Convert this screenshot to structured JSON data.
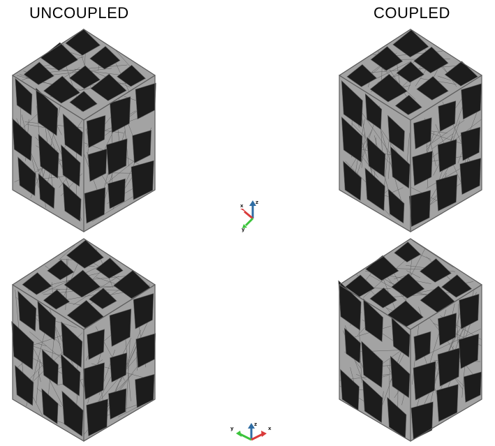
{
  "headings": {
    "left": "UNCOUPLED",
    "right": "COUPLED"
  },
  "axis_triad_top": {
    "labels": [
      "x",
      "z",
      "y"
    ]
  },
  "axis_triad_bottom": {
    "labels": [
      "y",
      "z",
      "x"
    ]
  },
  "colors": {
    "face": "#a3a3a3",
    "mesh_line": "#5e5e5e",
    "hole": "#1c1c1c",
    "axis_x": "#d93a3a",
    "axis_y": "#3cc43c",
    "axis_z": "#2f6da3"
  }
}
